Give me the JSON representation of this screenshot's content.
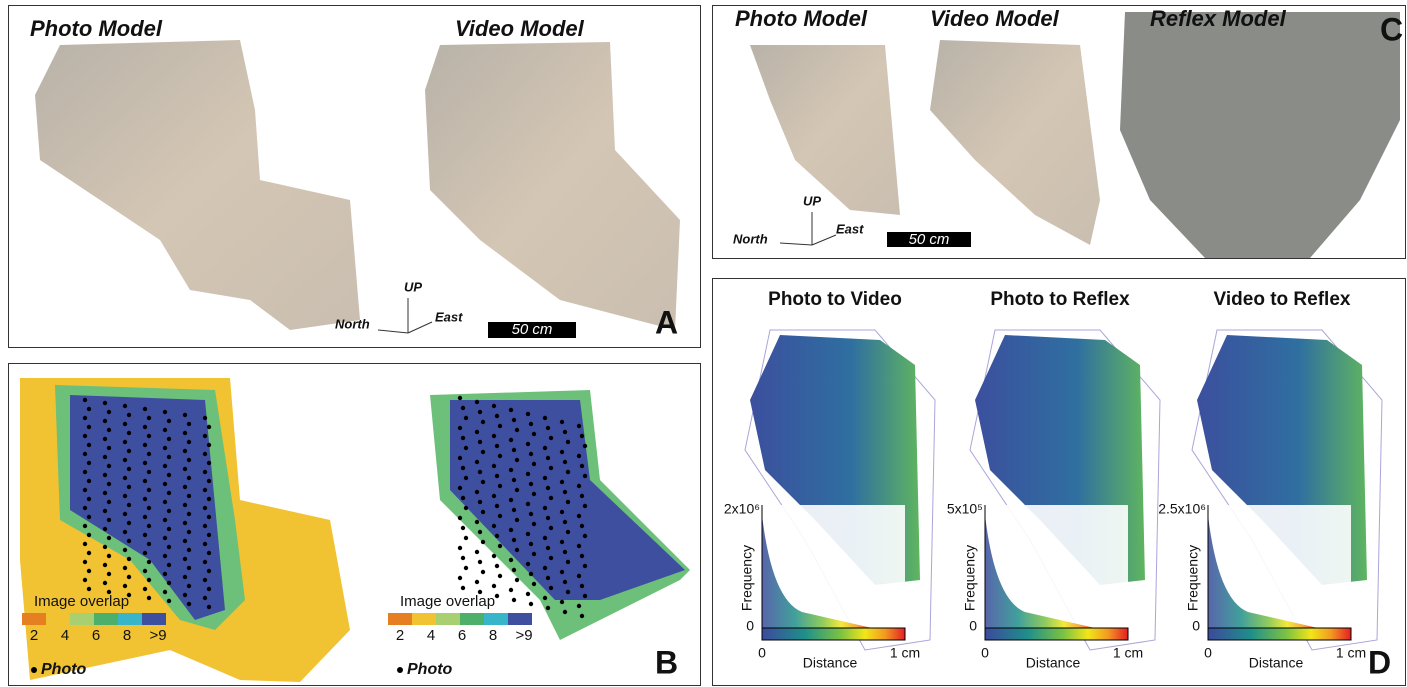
{
  "panel_a": {
    "label": "A",
    "photo_title": "Photo Model",
    "video_title": "Video Model",
    "compass": {
      "up": "UP",
      "north": "North",
      "east": "East"
    },
    "scale_bar": "50 cm"
  },
  "panel_b": {
    "label": "B",
    "maps": [
      {
        "legend_title": "Image overlap",
        "legend_ticks": [
          "2",
          "4",
          "6",
          "8",
          ">9"
        ],
        "points_label": "Photo"
      },
      {
        "legend_title": "Image overlap",
        "legend_ticks": [
          "2",
          "4",
          "6",
          "8",
          ">9"
        ],
        "points_label": "Photo"
      }
    ]
  },
  "panel_c": {
    "label": "C",
    "titles": [
      "Photo Model",
      "Video Model",
      "Reflex Model"
    ],
    "compass": {
      "up": "UP",
      "north": "North",
      "east": "East"
    },
    "scale_bar": "50 cm"
  },
  "panel_d": {
    "label": "D",
    "maps": [
      {
        "title": "Photo to Video",
        "freq_max": "2x10⁶",
        "y_label": "Frequency",
        "y_min": "0",
        "x_min": "0",
        "x_label": "Distance",
        "x_max": "1 cm"
      },
      {
        "title": "Photo to Reflex",
        "freq_max": "5x10⁵",
        "y_label": "Frequency",
        "y_min": "0",
        "x_min": "0",
        "x_label": "Distance",
        "x_max": "1 cm"
      },
      {
        "title": "Video to Reflex",
        "freq_max": "2.5x10⁶",
        "y_label": "Frequency",
        "y_min": "0",
        "x_min": "0",
        "x_label": "Distance",
        "x_max": "1 cm"
      }
    ]
  }
}
